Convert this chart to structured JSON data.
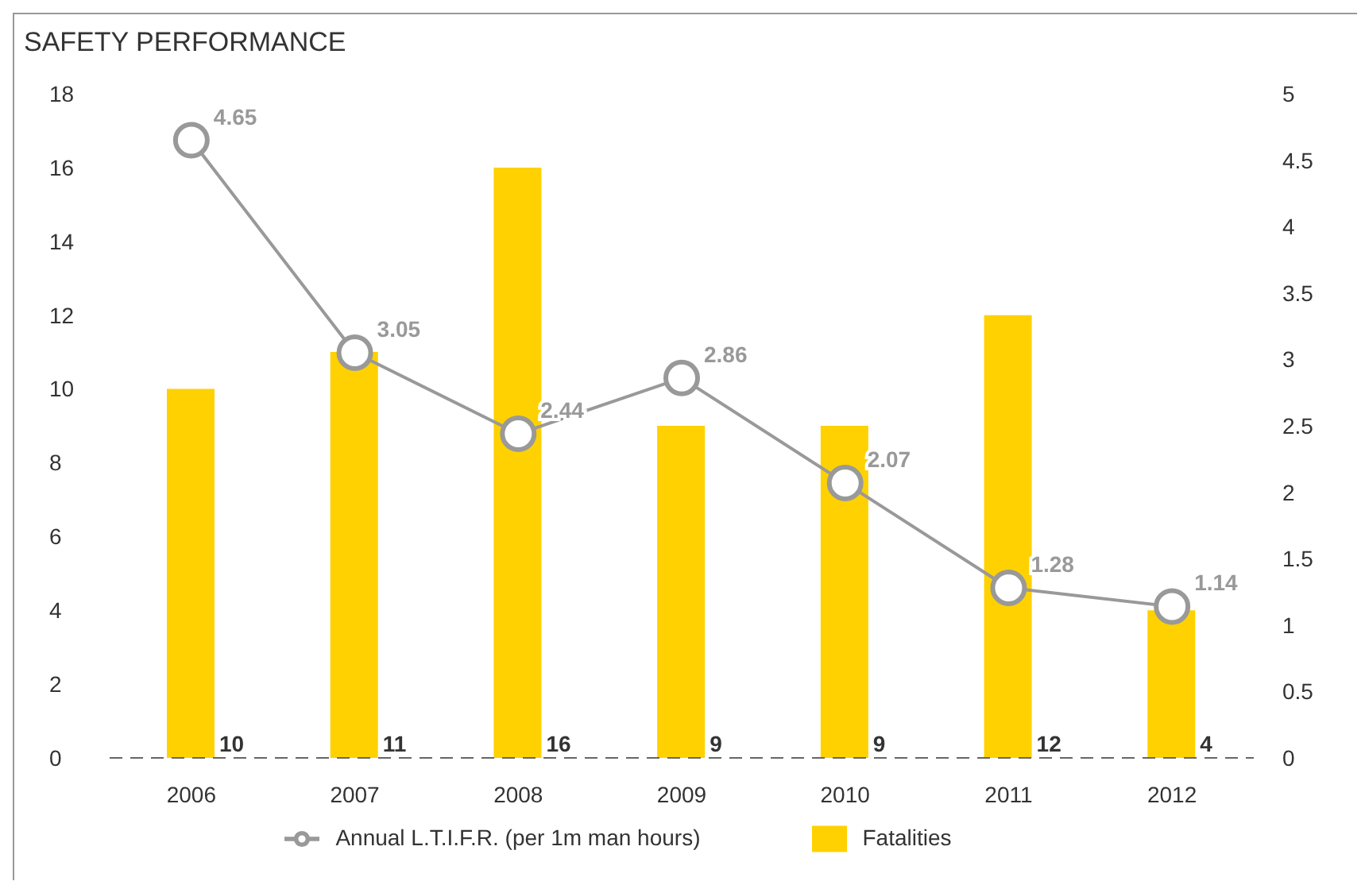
{
  "chart_data": {
    "type": "bar",
    "title": "SAFETY PERFORMANCE",
    "categories": [
      "2006",
      "2007",
      "2008",
      "2009",
      "2010",
      "2011",
      "2012"
    ],
    "series": [
      {
        "name": "Fatalities",
        "color": "#ffd100",
        "values": [
          10,
          11,
          16,
          9,
          9,
          12,
          4
        ]
      },
      {
        "name": "Annual L.T.I.F.R. (per 1m man hours)",
        "type": "line",
        "axis": "y2",
        "color": "#999999",
        "values": [
          4.65,
          3.05,
          2.44,
          2.86,
          2.07,
          1.28,
          1.14
        ]
      }
    ],
    "ylim": [
      0,
      18
    ],
    "yticks": [
      0,
      2,
      4,
      6,
      8,
      10,
      12,
      14,
      16,
      18
    ],
    "y2lim": [
      0,
      5
    ],
    "y2ticks": [
      0,
      0.5,
      1,
      1.5,
      2,
      2.5,
      3,
      3.5,
      4,
      4.5,
      5
    ],
    "data_labels": true,
    "marker": "circle",
    "legend": "bottom",
    "grid": false
  }
}
